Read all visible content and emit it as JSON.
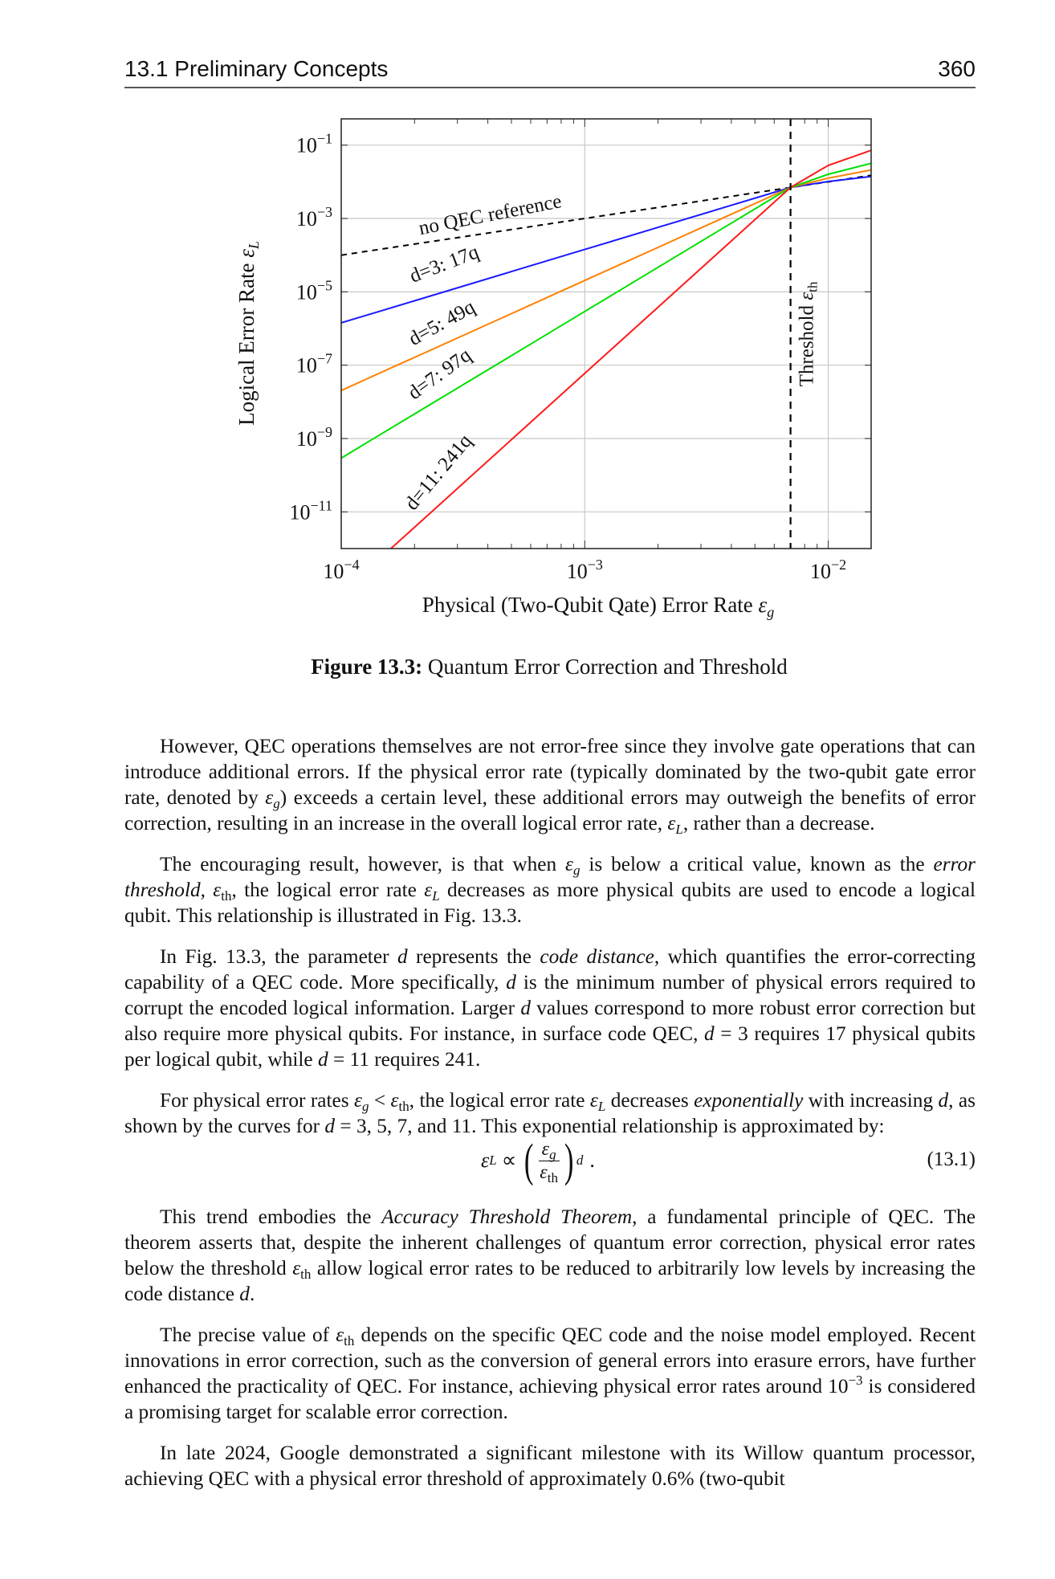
{
  "header": {
    "section": "13.1 Preliminary Concepts",
    "page": "360"
  },
  "chart_data": {
    "type": "line",
    "xscale": "log",
    "yscale": "log",
    "xlim": [
      0.0001,
      0.015
    ],
    "ylim": [
      1e-12,
      0.52
    ],
    "xlabel": "Physical (Two-Qubit Qate) Error Rate",
    "xlabel_symbol": "ε",
    "xlabel_sub": "g",
    "ylabel": "Logical Error Rate",
    "ylabel_symbol": "ε",
    "ylabel_sub": "L",
    "x_ticks": [
      {
        "base": "10",
        "exp": "−4",
        "value": 0.0001
      },
      {
        "base": "10",
        "exp": "−3",
        "value": 0.001
      },
      {
        "base": "10",
        "exp": "−2",
        "value": 0.01
      }
    ],
    "y_ticks": [
      {
        "base": "10",
        "exp": "−1",
        "value": 0.1
      },
      {
        "base": "10",
        "exp": "−3",
        "value": 0.001
      },
      {
        "base": "10",
        "exp": "−5",
        "value": 1e-05
      },
      {
        "base": "10",
        "exp": "−7",
        "value": 1e-07
      },
      {
        "base": "10",
        "exp": "−9",
        "value": 1e-09
      },
      {
        "base": "10",
        "exp": "−11",
        "value": 1e-11
      }
    ],
    "grid": true,
    "threshold": {
      "value": 0.007,
      "label": "Threshold",
      "symbol": "ε",
      "sub": "th"
    },
    "x": [
      0.0001,
      0.00015,
      0.0002,
      0.0005,
      0.001,
      0.002,
      0.004,
      0.007,
      0.01,
      0.015
    ],
    "series": [
      {
        "name": "no QEC reference",
        "color": "#000000",
        "dashed": true,
        "values": [
          0.0001,
          0.00015,
          0.0002,
          0.0005,
          0.001,
          0.002,
          0.004,
          0.007,
          0.01,
          0.015
        ]
      },
      {
        "name": "d=3: 17q",
        "color": "#1a1aff",
        "values": [
          1.43e-06,
          3.2e-06,
          5.7e-06,
          3.57e-05,
          0.000143,
          0.000571,
          0.00229,
          0.007,
          0.0102,
          0.014
        ]
      },
      {
        "name": "d=5: 49q",
        "color": "#ff8000",
        "values": [
          2.04e-08,
          6.9e-08,
          1.63e-07,
          2.55e-06,
          2.04e-05,
          0.000163,
          0.00131,
          0.007,
          0.0126,
          0.021
        ]
      },
      {
        "name": "d=7: 97q",
        "color": "#00e000",
        "values": [
          2.92e-10,
          1.48e-09,
          4.67e-09,
          1.82e-07,
          2.92e-06,
          4.67e-05,
          0.000746,
          0.007,
          0.016,
          0.032
        ]
      },
      {
        "name": "d=11: 241q",
        "color": "#ff1a1a",
        "values": [
          null,
          6.8e-13,
          3.8e-12,
          9.3e-10,
          5.96e-08,
          3.8e-06,
          0.000244,
          0.007,
          0.028,
          0.072
        ]
      }
    ]
  },
  "figure": {
    "label": "Figure 13.3:",
    "title": "Quantum Error Correction and Threshold"
  },
  "sym": {
    "eps": "ε",
    "g": "g",
    "L": "L",
    "th": "th",
    "d": "d"
  },
  "p1": {
    "a": "However, QEC operations themselves are not error-free since they involve gate operations that can introduce additional errors. If the physical error rate (typically dominated by the two-qubit gate error rate, denoted by ",
    "b": ") exceeds a certain level, these additional errors may outweigh the benefits of error correction, resulting in an increase in the overall logical error rate, ",
    "c": ", rather than a decrease."
  },
  "p2": {
    "a": "The encouraging result, however, is that when ",
    "b": " is below a critical value, known as the ",
    "term": "error threshold,",
    "c": " ",
    "d": ", the logical error rate ",
    "e": " decreases as more physical qubits are used to encode a logical qubit. This relationship is illustrated in Fig. 13.3."
  },
  "p3": {
    "a": "In Fig. 13.3, the parameter ",
    "b": " represents the ",
    "term": "code distance",
    "c": ", which quantifies the error-correcting capability of a QEC code. More specifically, ",
    "d": " is the minimum number of physical errors required to corrupt the encoded logical information. Larger ",
    "e": " values correspond to more robust error correction but also require more physical qubits. For instance, in surface code QEC, ",
    "f": " = 3 requires 17 physical qubits per logical qubit, while ",
    "g": " = 11 requires 241."
  },
  "p4": {
    "a": "For physical error rates ",
    "lt": " < ",
    "b": ", the logical error rate ",
    "c": " decreases ",
    "term": "exponentially",
    "d": " with increasing ",
    "e": ", as shown by the curves for ",
    "f": " = 3, 5, 7, and 11. This exponential relationship is approximated by:"
  },
  "equation": {
    "prop": " ∝ ",
    "open": "(",
    "close": ")",
    "dot": ".",
    "number": "(13.1)"
  },
  "p5": {
    "a": "This trend embodies the ",
    "term": "Accuracy Threshold Theorem",
    "b": ", a fundamental principle of QEC. The theorem asserts that, despite the inherent challenges of quantum error correction, physical error rates below the threshold ",
    "c": " allow logical error rates to be reduced to arbitrarily low levels by increasing the code distance ",
    "d": "."
  },
  "p6": {
    "a": "The precise value of ",
    "b": " depends on the specific QEC code and the noise model employed. Recent innovations in error correction, such as the conversion of general errors into erasure errors, have further enhanced the practicality of QEC. For instance, achieving physical error rates around 10",
    "exp": "−3",
    "c": " is considered a promising target for scalable error correction."
  },
  "p7": {
    "a": "In late 2024, Google demonstrated a significant milestone with its Willow quantum processor, achieving QEC with a physical error threshold of approximately 0.6% (two-qubit"
  }
}
